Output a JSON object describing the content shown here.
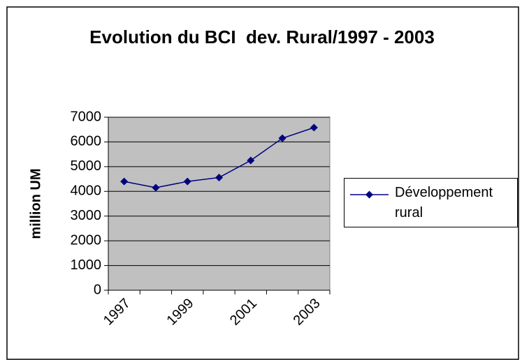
{
  "chart_data": {
    "type": "line",
    "title": "Evolution du BCI  dev. Rural/1997 - 2003",
    "y_label": "million UM",
    "categories": [
      "1997",
      null,
      "1999",
      null,
      "2001",
      null,
      "2003"
    ],
    "series": [
      {
        "name": "Développement rural",
        "color": "#000080",
        "values": [
          4400,
          4150,
          4400,
          4560,
          5250,
          6150,
          6580
        ]
      }
    ],
    "ylim": [
      0,
      7000
    ],
    "yticks": [
      0,
      1000,
      2000,
      3000,
      4000,
      5000,
      6000,
      7000
    ],
    "grid": true,
    "plot_background": "#c0c0c0",
    "legend": "right"
  }
}
